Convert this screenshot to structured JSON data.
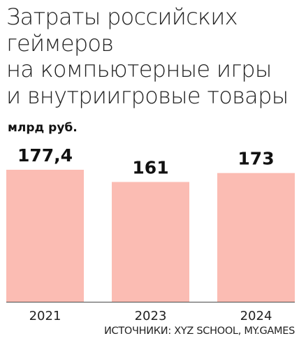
{
  "title_lines": [
    "Затраты российских",
    "геймеров",
    "на компьютерные игры",
    "и внутриигровые товары"
  ],
  "unit": "млрд руб.",
  "source": "ИСТОЧНИКИ: XYZ SCHOOL, MY.GAMES",
  "colors": {
    "bar": "#fbbcb3",
    "axis": "#4a4a4a"
  },
  "chart_data": {
    "type": "bar",
    "categories": [
      "2021",
      "2023",
      "2024"
    ],
    "values": [
      177.4,
      161,
      173
    ],
    "value_labels": [
      "177,4",
      "161",
      "173"
    ],
    "title": "Затраты российских геймеров на компьютерные игры и внутриигровые товары",
    "xlabel": "",
    "ylabel": "млрд руб.",
    "ylim": [
      0,
      177.4
    ],
    "grid": false,
    "legend": "none"
  }
}
